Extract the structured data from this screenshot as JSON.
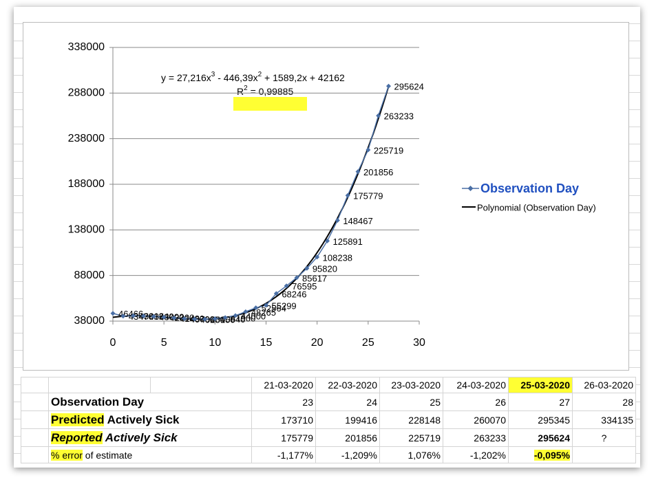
{
  "chart_data": {
    "type": "line",
    "trendline_equation": [
      "y = 27,216x",
      "3",
      " - 446,39x",
      "2",
      " + 1589,2x + 42162"
    ],
    "r_squared": [
      "R",
      "2",
      " = 0,99885"
    ],
    "trendline": {
      "name": "Polynomial (Observation Day)",
      "color": "#000000",
      "coefficients": [
        27.216,
        -446.39,
        1589.2,
        42162
      ]
    },
    "x": [
      0,
      1,
      2,
      3,
      4,
      5,
      6,
      7,
      8,
      9,
      10,
      11,
      12,
      13,
      14,
      15,
      16,
      17,
      18,
      19,
      20,
      21,
      22,
      23,
      24,
      25,
      26,
      27
    ],
    "series": [
      {
        "name": "Observation Day",
        "color": "#4a6fa5",
        "values": [
          46466,
          43470,
          43812,
          43540,
          43090,
          42300,
          41480,
          40700,
          40250,
          40150,
          40640,
          41900,
          44000,
          48265,
          52564,
          55299,
          68246,
          76595,
          85617,
          95820,
          108238,
          125891,
          148467,
          175779,
          201856,
          225719,
          263233,
          295624
        ]
      }
    ],
    "xlim": [
      0,
      30
    ],
    "xticks": [
      0,
      5,
      10,
      15,
      20,
      25,
      30
    ],
    "ylim": [
      38000,
      338000
    ],
    "yticks": [
      38000,
      88000,
      138000,
      188000,
      238000,
      288000,
      338000
    ],
    "grid": true
  },
  "table": {
    "header": [
      "21-03-2020",
      "22-03-2020",
      "23-03-2020",
      "24-03-2020",
      "25-03-2020",
      "26-03-2020"
    ],
    "rows": [
      {
        "label": [
          "Observation Day"
        ],
        "cells": [
          "23",
          "24",
          "25",
          "26",
          "27",
          "28"
        ]
      },
      {
        "label": [
          "Predicted",
          "Actively Sick"
        ],
        "cells": [
          "173710",
          "199416",
          "228148",
          "260070",
          "295345",
          "334135"
        ]
      },
      {
        "label": [
          "Reported",
          "Actively Sick"
        ],
        "cells": [
          "175779",
          "201856",
          "225719",
          "263233",
          "295624",
          "?"
        ]
      },
      {
        "label": [
          "% error",
          "of estimate"
        ],
        "cells": [
          "-1,177%",
          "-1,209%",
          "1,076%",
          "-1,202%",
          "-0,095%",
          ""
        ]
      }
    ]
  }
}
